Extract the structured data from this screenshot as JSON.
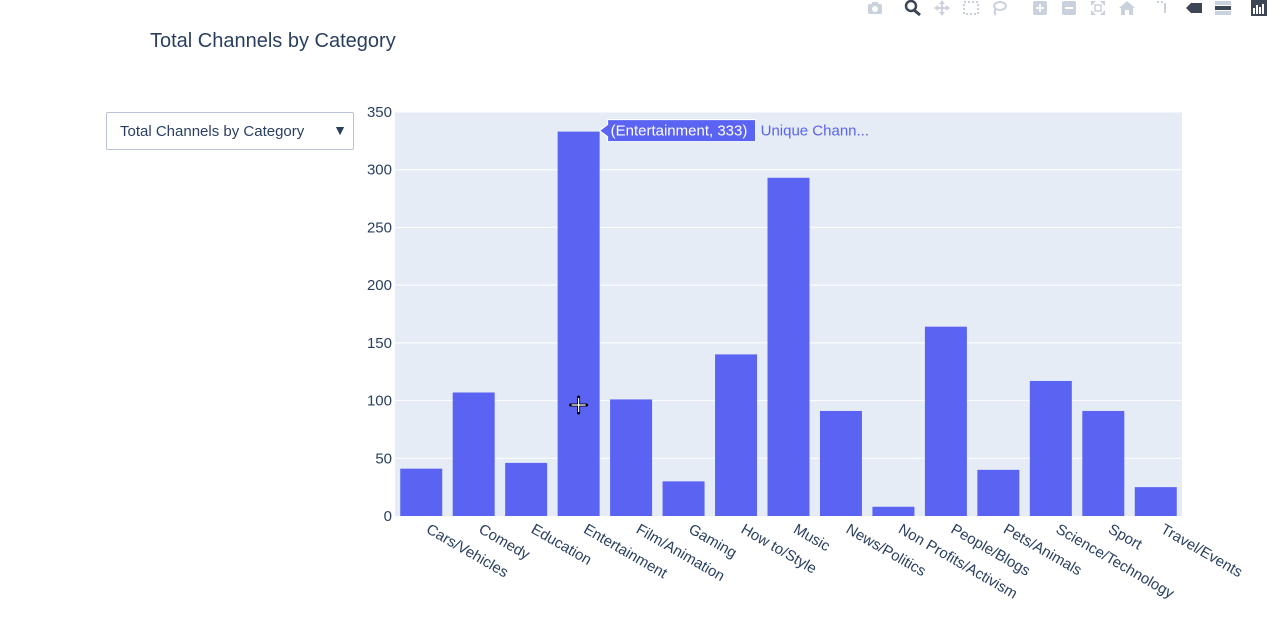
{
  "title": "Total Channels by Category",
  "dropdown": {
    "selected": "Total Channels by Category",
    "arrow": "▼"
  },
  "modebar": {
    "icons": [
      "camera-icon",
      "zoom-icon",
      "pan-icon",
      "box-select-icon",
      "lasso-icon",
      "zoom-in-icon",
      "zoom-out-icon",
      "autoscale-icon",
      "home-icon",
      "spike-lines-icon",
      "hover-closest-icon",
      "hover-compare-icon",
      "plotly-logo-icon"
    ],
    "colors": {
      "icon": "#c9d2dc",
      "icon_dark": "#3c4654"
    }
  },
  "colors": {
    "bar": "#5a63f2",
    "plot_bg": "#e5ecf6",
    "grid": "#ffffff",
    "text": "#2a3f5f"
  },
  "hover": {
    "category": "Entertainment",
    "label": "(Entertainment, 333)",
    "trace_name": "Unique Chann..."
  },
  "chart_data": {
    "type": "bar",
    "title": "Total Channels by Category",
    "xlabel": "",
    "ylabel": "",
    "ylim": [
      0,
      350
    ],
    "yticks": [
      0,
      50,
      100,
      150,
      200,
      250,
      300,
      350
    ],
    "grid": true,
    "categories": [
      "Cars/Vehicles",
      "Comedy",
      "Education",
      "Entertainment",
      "Film/Animation",
      "Gaming",
      "How to/Style",
      "Music",
      "News/Politics",
      "Non Profits/Activism",
      "People/Blogs",
      "Pets/Animals",
      "Science/Technology",
      "Sport",
      "Travel/Events"
    ],
    "values": [
      41,
      107,
      46,
      333,
      101,
      30,
      140,
      293,
      91,
      8,
      164,
      40,
      117,
      91,
      25
    ]
  }
}
